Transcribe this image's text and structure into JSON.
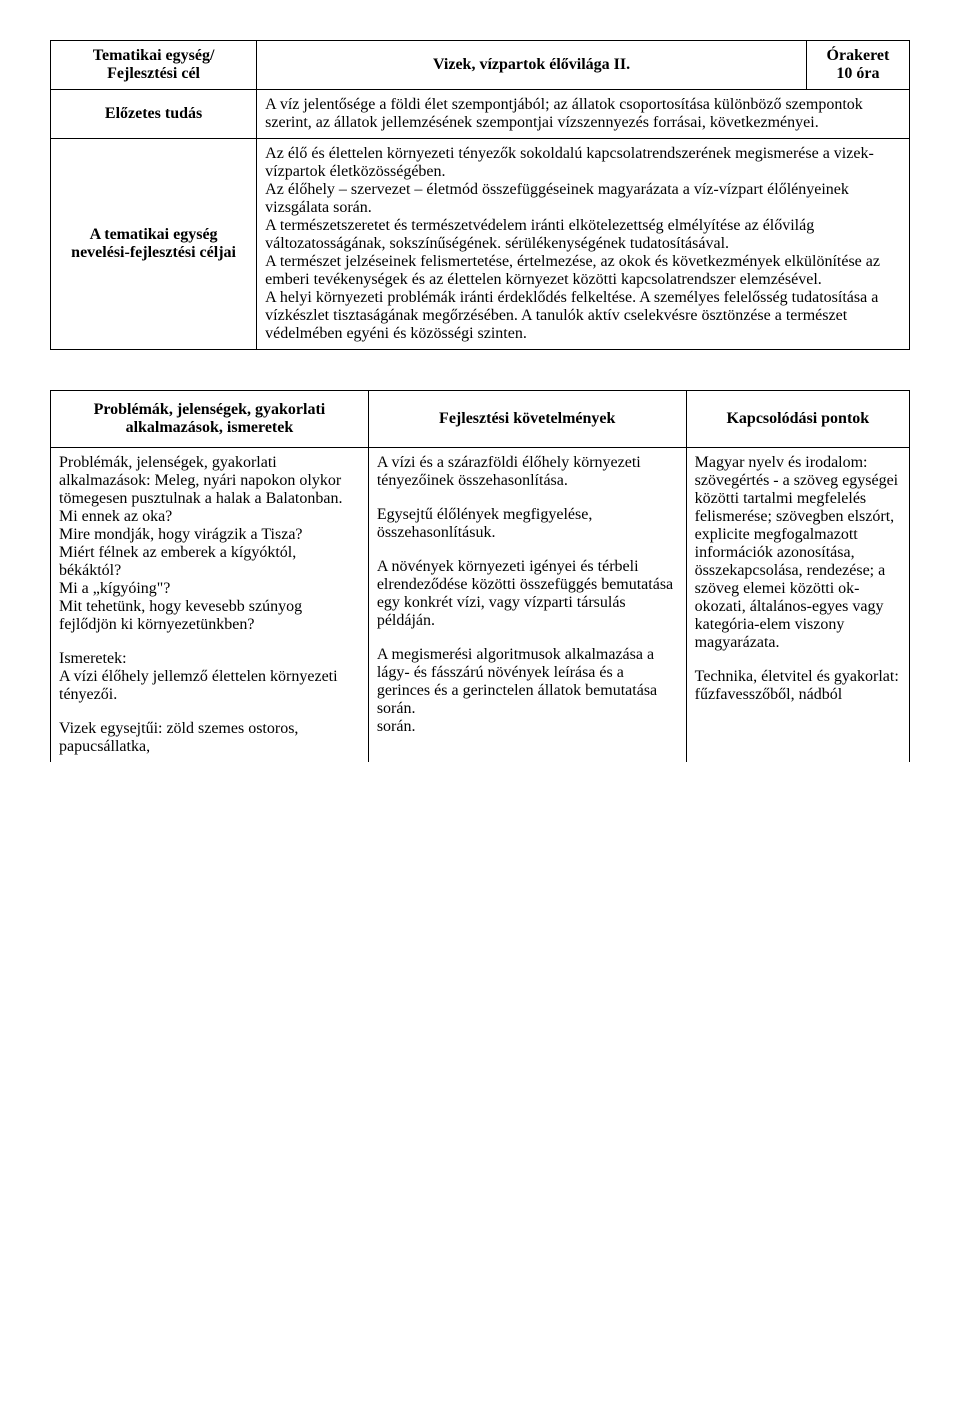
{
  "table1": {
    "row1": {
      "left": "Tematikai egység/\nFejlesztési cél",
      "mid": "Vizek, vízpartok élővilága II.",
      "right": "Órakeret\n10 óra"
    },
    "row2": {
      "left": "Előzetes tudás",
      "body": "A víz jelentősége a földi élet szempontjából; az állatok csoportosítása különböző szempontok szerint, az állatok jellemzésének szempontjai vízszennyezés forrásai, következményei."
    },
    "row3": {
      "left": "A tematikai egység nevelési-fejlesztési céljai",
      "body": "Az élő és élettelen környezeti tényezők sokoldalú kapcsolatrendszerének megismerése a vizek-vízpartok életközösségében.\nAz élőhely – szervezet – életmód összefüggéseinek magyarázata a víz-vízpart élőlényeinek vizsgálata során.\nA természetszeretet és természetvédelem iránti elkötelezettség elmélyítése az élővilág változatosságának, sokszínűségének. sérülékenységének tudatosításával.\nA természet jelzéseinek felismertetése, értelmezése, az okok és következmények elkülönítése az emberi tevékenységek és az élettelen környezet közötti kapcsolatrendszer elemzésével.\nA helyi környezeti problémák iránti érdeklődés felkeltése. A személyes felelősség tudatosítása a vízkészlet tisztaságának megőrzésében. A tanulók aktív cselekvésre ösztönzése a természet védelmében egyéni és közösségi szinten."
    }
  },
  "table2": {
    "header": {
      "a": "Problémák, jelenségek, gyakorlati alkalmazások, ismeretek",
      "b": "Fejlesztési követelmények",
      "c": "Kapcsolódási pontok"
    },
    "row": {
      "a": "Problémák, jelenségek, gyakorlati alkalmazások: Meleg, nyári napokon olykor tömegesen pusztulnak a halak a Balatonban. Mi ennek az oka?\nMire mondják, hogy virágzik a Tisza?\nMiért félnek az emberek a kígyóktól, békáktól?\nMi a „kígyóing\"?\nMit tehetünk, hogy kevesebb szúnyog fejlődjön ki környezetünkben?\n\nIsmeretek:\nA vízi élőhely jellemző élettelen környezeti tényezői.\n\nVizek egysejtűi: zöld szemes ostoros, papucsállatka,",
      "b": "A vízi és a szárazföldi élőhely környezeti tényezőinek összehasonlítása.\n\nEgysejtű élőlények megfigyelése, összehasonlításuk.\n\nA növények környezeti igényei és térbeli elrendeződése közötti összefüggés bemutatása egy konkrét vízi, vagy vízparti társulás példáján.\n\nA megismerési algoritmusok alkalmazása a lágy- és fásszárú növények leírása és a gerinces és a gerinctelen állatok bemutatása során.\nsorán.",
      "c": "Magyar nyelv és irodalom: szövegértés - a szöveg egységei közötti tartalmi megfelelés felismerése; szövegben elszórt, explicite megfogalmazott információk azonosítása, összekapcsolása, rendezése; a szöveg elemei közötti ok-okozati, általános-egyes vagy kategória-elem viszony magyarázata.\n\nTechnika, életvitel és gyakorlat: fűzfavesszőből, nádból"
    }
  }
}
